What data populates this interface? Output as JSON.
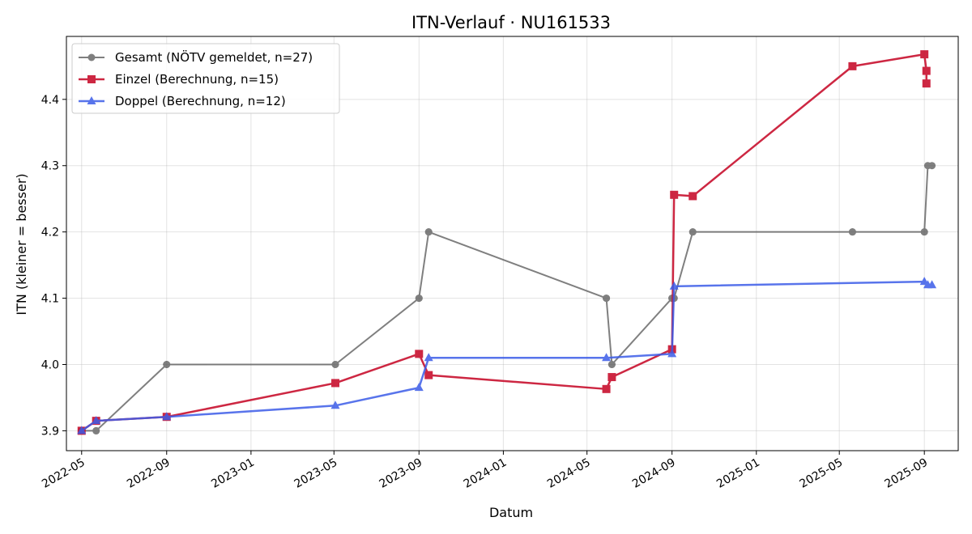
{
  "chart_data": {
    "type": "line",
    "title": "ITN-Verlauf · NU161533",
    "xlabel": "Datum",
    "ylabel": "ITN  (kleiner = besser)",
    "x_ticks": [
      "2022-05",
      "2022-09",
      "2023-01",
      "2023-05",
      "2023-09",
      "2024-01",
      "2024-05",
      "2024-09",
      "2025-01",
      "2025-05",
      "2025-09"
    ],
    "y_ticks": [
      3.9,
      4.0,
      4.1,
      4.2,
      4.3,
      4.4
    ],
    "xlim": [
      "2022-04-09",
      "2025-10-20"
    ],
    "ylim": [
      3.87,
      4.495
    ],
    "grid": true,
    "legend_position": "top-left",
    "series": [
      {
        "name": "Gesamt (NÖTV gemeldet, n=27)",
        "color": "#555555",
        "marker": "circle",
        "x": [
          "2022-05-01",
          "2022-05-01",
          "2022-05-22",
          "2022-05-22",
          "2022-09-01",
          "2022-09-01",
          "2023-05-03",
          "2023-05-03",
          "2023-09-01",
          "2023-09-01",
          "2023-09-15",
          "2023-09-15",
          "2024-05-29",
          "2024-05-29",
          "2024-06-06",
          "2024-06-06",
          "2024-09-01",
          "2024-09-01",
          "2024-09-04",
          "2024-09-04",
          "2024-10-01",
          "2024-10-01",
          "2025-05-20",
          "2025-05-20",
          "2025-09-01",
          "2025-09-01",
          "2025-09-06",
          "2025-09-12"
        ],
        "y": [
          3.9,
          3.9,
          3.9,
          3.9,
          4.0,
          4.0,
          4.0,
          4.0,
          4.1,
          4.1,
          4.2,
          4.2,
          4.1,
          4.1,
          4.0,
          4.0,
          4.1,
          4.1,
          4.1,
          4.1,
          4.2,
          4.2,
          4.2,
          4.2,
          4.2,
          4.2,
          4.3,
          4.3
        ]
      },
      {
        "name": "Einzel (Berechnung, n=15)",
        "color": "#c8102e",
        "marker": "square",
        "x": [
          "2022-05-01",
          "2022-05-22",
          "2022-09-01",
          "2023-05-03",
          "2023-09-01",
          "2023-09-15",
          "2024-05-29",
          "2024-06-06",
          "2024-09-01",
          "2024-09-04",
          "2024-10-01",
          "2025-05-20",
          "2025-09-01",
          "2025-09-04",
          "2025-09-04"
        ],
        "y": [
          3.9,
          3.915,
          3.921,
          3.972,
          4.016,
          3.984,
          3.963,
          3.981,
          4.023,
          4.256,
          4.254,
          4.45,
          4.468,
          4.443,
          4.424
        ]
      },
      {
        "name": "Doppel (Berechnung, n=12)",
        "color": "#3c5ce8",
        "marker": "triangle",
        "x": [
          "2022-05-01",
          "2022-05-22",
          "2022-09-01",
          "2023-05-03",
          "2023-09-01",
          "2023-09-15",
          "2024-05-29",
          "2024-09-01",
          "2024-09-04",
          "2025-09-01",
          "2025-09-06",
          "2025-09-12"
        ],
        "y": [
          3.9,
          3.915,
          3.921,
          3.938,
          3.965,
          4.01,
          4.01,
          4.016,
          4.118,
          4.125,
          4.12,
          4.12
        ]
      }
    ]
  }
}
